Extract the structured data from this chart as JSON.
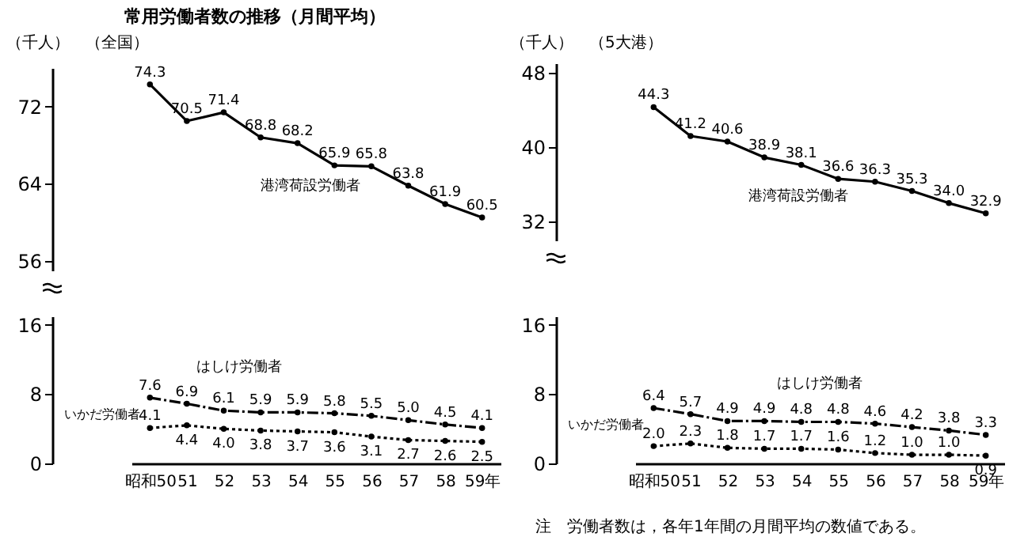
{
  "chart_data": [
    {
      "type": "line",
      "title": "常用労働者数の推移（月間平均）",
      "subtitle": "（全国）",
      "ylabel": "（千人）",
      "categories": [
        null,
        null,
        null,
        null,
        null,
        null,
        null,
        null,
        null,
        null
      ],
      "ylim": [
        55,
        76
      ],
      "yticks": [
        56,
        64,
        72
      ],
      "tick_labels": "y",
      "marker": "circle",
      "series": [
        {
          "name": "港湾荷設労働者",
          "color": "#000000",
          "line_style": "solid",
          "values": [
            74.3,
            70.5,
            71.4,
            68.8,
            68.2,
            65.9,
            65.8,
            63.8,
            61.9,
            60.5
          ],
          "value_labels": [
            "74.3",
            "70.5",
            "71.4",
            "68.8",
            "68.2",
            "65.9",
            "65.8",
            "63.8",
            "61.9",
            "60.5"
          ]
        }
      ]
    },
    {
      "type": "line",
      "subtitle": "（5大港）",
      "ylabel": "（千人）",
      "categories": [
        null,
        null,
        null,
        null,
        null,
        null,
        null,
        null,
        null,
        null
      ],
      "ylim": [
        30,
        49
      ],
      "yticks": [
        32,
        40,
        48
      ],
      "tick_labels": "y",
      "marker": "circle",
      "series": [
        {
          "name": "港湾荷設労働者",
          "color": "#000000",
          "line_style": "solid",
          "values": [
            44.3,
            41.2,
            40.6,
            38.9,
            38.1,
            36.6,
            36.3,
            35.3,
            34.0,
            32.9
          ],
          "value_labels": [
            "44.3",
            "41.2",
            "40.6",
            "38.9",
            "38.1",
            "36.6",
            "36.3",
            "35.3",
            "34.0",
            "32.9"
          ]
        }
      ]
    },
    {
      "type": "line",
      "categories": [
        "昭和50",
        "51",
        "52",
        "53",
        "54",
        "55",
        "56",
        "57",
        "58",
        "59年"
      ],
      "ylim": [
        0,
        17
      ],
      "yticks": [
        0,
        8,
        16
      ],
      "marker": "circle",
      "series": [
        {
          "name": "はしけ労働者",
          "color": "#000000",
          "line_style": "dashed",
          "values": [
            7.6,
            6.9,
            6.1,
            5.9,
            5.9,
            5.8,
            5.5,
            5.0,
            4.5,
            4.1
          ],
          "value_labels": [
            "7.6",
            "6.9",
            "6.1",
            "5.9",
            "5.9",
            "5.8",
            "5.5",
            "5.0",
            "4.5",
            "4.1"
          ]
        },
        {
          "name": "いかだ労働者",
          "color": "#000000",
          "line_style": "dotted",
          "values": [
            4.1,
            4.4,
            4.0,
            3.8,
            3.7,
            3.6,
            3.1,
            2.7,
            2.6,
            2.5
          ],
          "value_labels": [
            "4.1",
            "4.4",
            "4.0",
            "3.8",
            "3.7",
            "3.6",
            "3.1",
            "2.7",
            "2.6",
            "2.5"
          ]
        }
      ]
    },
    {
      "type": "line",
      "categories": [
        "昭和50",
        "51",
        "52",
        "53",
        "54",
        "55",
        "56",
        "57",
        "58",
        "59年"
      ],
      "ylim": [
        0,
        17
      ],
      "yticks": [
        0,
        8,
        16
      ],
      "marker": "circle",
      "annotations": [
        "注　労働者数は，各年1年間の月間平均の数値である。"
      ],
      "series": [
        {
          "name": "はしけ労働者",
          "color": "#000000",
          "line_style": "dashed",
          "values": [
            6.4,
            5.7,
            4.9,
            4.9,
            4.8,
            4.8,
            4.6,
            4.2,
            3.8,
            3.3
          ],
          "value_labels": [
            "6.4",
            "5.7",
            "4.9",
            "4.9",
            "4.8",
            "4.8",
            "4.6",
            "4.2",
            "3.8",
            "3.3"
          ]
        },
        {
          "name": "いかだ労働者",
          "color": "#000000",
          "line_style": "dotted",
          "values": [
            2.0,
            2.3,
            1.8,
            1.7,
            1.7,
            1.6,
            1.2,
            1.0,
            1.0,
            0.9
          ],
          "value_labels": [
            "2.0",
            "2.3",
            "1.8",
            "1.7",
            "1.7",
            "1.6",
            "1.2",
            "1.0",
            "1.0",
            "0.9"
          ]
        }
      ]
    }
  ]
}
